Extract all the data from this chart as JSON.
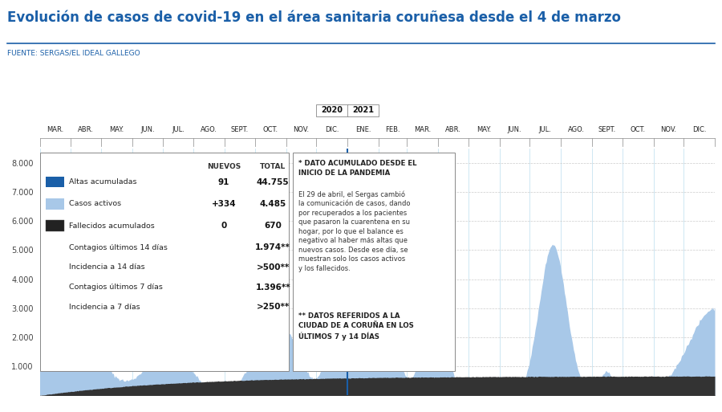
{
  "title": "Evolución de casos de covid-19 en el área sanitaria coruñesa desde el 4 de marzo",
  "subtitle": "FUENTE: SERGAS/EL IDEAL GALLEGO",
  "title_color": "#1a5fa8",
  "subtitle_color": "#1a5fa8",
  "months_2020": [
    "MAR.",
    "ABR.",
    "MAY.",
    "JUN.",
    "JUL.",
    "AGO.",
    "SEPT.",
    "OCT.",
    "NOV.",
    "DIC."
  ],
  "months_2021": [
    "ENE.",
    "FEB.",
    "MAR.",
    "ABR.",
    "MAY.",
    "JUN.",
    "JUL.",
    "AGO.",
    "SEPT.",
    "OCT.",
    "NOV.",
    "DIC."
  ],
  "ylim": [
    0,
    8500
  ],
  "yticks": [
    1000,
    2000,
    3000,
    4000,
    5000,
    6000,
    7000,
    8000
  ],
  "grid_color": "#cccccc",
  "background_color": "#ffffff",
  "area_active_color": "#a8c8e8",
  "area_deaths_color": "#333333",
  "separator_color": "#1a5fa8",
  "legend_box": {
    "nuevos_label": "NUEVOS",
    "total_label": "TOTAL",
    "items": [
      {
        "color": "#1a5fa8",
        "label": "Altas acumuladas",
        "nuevos": "91",
        "total": "44.755"
      },
      {
        "color": "#a8c8e8",
        "label": "Casos activos",
        "nuevos": "+334",
        "total": "4.485"
      },
      {
        "color": "#222222",
        "label": "Fallecidos acumulados",
        "nuevos": "0",
        "total": "670"
      }
    ],
    "extra_rows": [
      {
        "label": "Contagios últimos 14 días",
        "total": "1.974**"
      },
      {
        "label": "Incidencia a 14 días",
        "total": ">500**"
      },
      {
        "label": "Contagios últimos 7 días",
        "total": "1.396**"
      },
      {
        "label": "Incidencia a 7 días",
        "total": ">250**"
      }
    ]
  },
  "note_box": {
    "text1": "* DATO ACUMULADO DESDE EL\nINICIO DE LA PANDEMIA",
    "text2": "El 29 de abril, el Sergas cambió\nla comunicación de casos, dando\npor recuperados a los pacientes\nque pasaron la cuarentena en su\nhogar, por lo que el balance es\nnegativo al haber más altas que\nnuevos casos. Desde ese día, se\nmuestran solo los casos activos\ny los fallecidos.",
    "text3": "** DATOS REFERIDOS A LA\nCIUDAD DE A CORUÑA EN LOS\nÚLTIMOS 7 y 14 DÍAS"
  }
}
